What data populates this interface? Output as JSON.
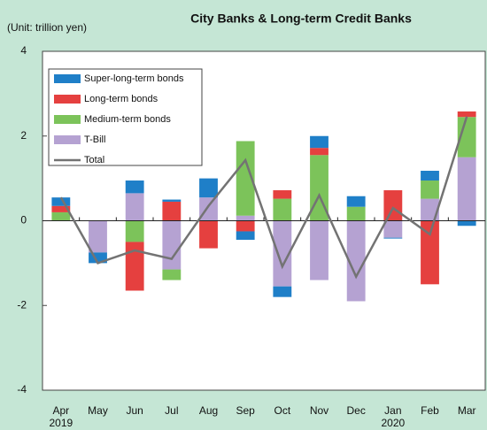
{
  "chart_data": {
    "type": "bar",
    "stacked": true,
    "title": "City Banks & Long-term Credit Banks",
    "y_axis_label": "(Unit: trillion yen)",
    "categories": [
      "Apr",
      "May",
      "Jun",
      "Jul",
      "Aug",
      "Sep",
      "Oct",
      "Nov",
      "Dec",
      "Jan",
      "Feb",
      "Mar"
    ],
    "year_labels": [
      {
        "at": 0,
        "label": "2019"
      },
      {
        "at": 9,
        "label": "2020"
      }
    ],
    "series": [
      {
        "name": "Super-long-term bonds",
        "color": "#1f7fc8",
        "values": [
          0.2,
          -0.25,
          0.3,
          0.05,
          0.45,
          -0.2,
          -0.25,
          0.28,
          0.25,
          -0.02,
          0.23,
          -0.12
        ]
      },
      {
        "name": "Long-term bonds",
        "color": "#e5403f",
        "values": [
          0.15,
          0,
          -1.15,
          0.45,
          -0.65,
          -0.25,
          0.2,
          0.17,
          0,
          0.72,
          -1.5,
          0.13
        ]
      },
      {
        "name": "Medium-term bonds",
        "color": "#7cc35a",
        "values": [
          0.2,
          0,
          -0.5,
          -0.25,
          0,
          1.76,
          0.52,
          1.55,
          0.33,
          0,
          0.43,
          0.95
        ]
      },
      {
        "name": "T-Bill",
        "color": "#b5a2d2",
        "values": [
          0,
          -0.75,
          0.65,
          -1.15,
          0.55,
          0.12,
          -1.55,
          -1.4,
          -1.9,
          -0.4,
          0.52,
          1.5
        ]
      },
      {
        "name": "Total",
        "type": "line",
        "color": "#737373",
        "values": [
          0.55,
          -1.0,
          -0.7,
          -0.9,
          0.35,
          1.43,
          -1.08,
          0.6,
          -1.32,
          0.3,
          -0.32,
          2.46
        ]
      }
    ],
    "ylim": [
      -4,
      4
    ],
    "yticks": [
      -4,
      -2,
      0,
      2,
      4
    ],
    "grid": false,
    "legend": "upper left"
  }
}
